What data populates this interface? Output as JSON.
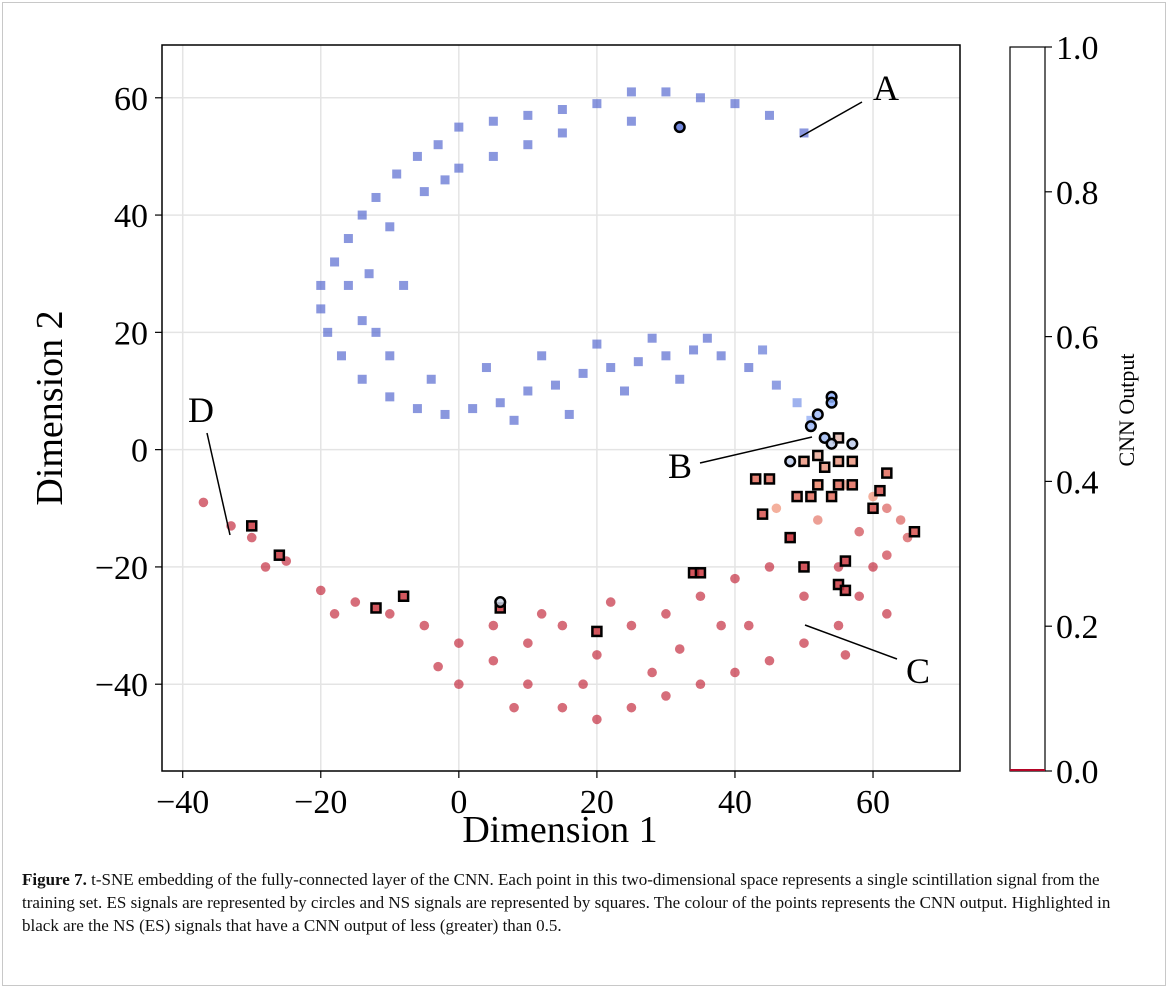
{
  "chart_data": {
    "type": "scatter",
    "xlabel": "Dimension 1",
    "ylabel": "Dimension 2",
    "colorbar_label": "CNN Output",
    "xlim": [
      -43,
      72.6
    ],
    "ylim": [
      -54.8,
      69
    ],
    "xticks": [
      {
        "value": -40,
        "label": "−40"
      },
      {
        "value": -20,
        "label": "−20"
      },
      0,
      20,
      40,
      60
    ],
    "yticks": [
      {
        "value": -40,
        "label": "−40"
      },
      {
        "value": -20,
        "label": "−20"
      },
      0,
      20,
      40,
      60
    ],
    "clim": [
      0,
      1
    ],
    "cticks": [
      {
        "value": 0,
        "label": "0.0"
      },
      0.2,
      0.4,
      0.6,
      0.8,
      {
        "value": 1,
        "label": "1.0"
      }
    ],
    "colormap": "coolwarm_r",
    "grid": true,
    "annotations": [
      "A",
      "B",
      "C",
      "D"
    ],
    "series": [
      {
        "marker": "square",
        "x": [
          50,
          45,
          40,
          35,
          30,
          25,
          20,
          15,
          10,
          5,
          0,
          -3,
          -6,
          -9,
          -12,
          -14,
          -16,
          -18,
          -20,
          -20,
          -19,
          -17,
          -14,
          -10,
          -6,
          -2,
          2,
          6,
          10,
          14,
          18,
          22,
          26,
          30,
          34,
          38,
          42,
          46,
          49,
          51,
          53,
          0,
          5,
          10,
          -5,
          -10,
          -13,
          -14,
          -10,
          -4,
          4,
          12,
          20,
          28,
          36,
          44,
          -8,
          -16,
          8,
          16,
          24,
          32,
          -2,
          15,
          25,
          -12
        ],
        "y": [
          54,
          57,
          59,
          60,
          61,
          61,
          59,
          58,
          57,
          56,
          55,
          52,
          50,
          47,
          43,
          40,
          36,
          32,
          28,
          24,
          20,
          16,
          12,
          9,
          7,
          6,
          7,
          8,
          10,
          11,
          13,
          14,
          15,
          16,
          17,
          16,
          14,
          11,
          8,
          5,
          2,
          48,
          50,
          52,
          44,
          38,
          30,
          22,
          16,
          12,
          14,
          16,
          18,
          19,
          19,
          17,
          28,
          28,
          5,
          6,
          10,
          12,
          46,
          54,
          56,
          20
        ],
        "c": [
          0.95,
          0.95,
          0.95,
          0.95,
          0.95,
          0.95,
          0.95,
          0.95,
          0.95,
          0.95,
          0.95,
          0.95,
          0.95,
          0.95,
          0.95,
          0.95,
          0.95,
          0.95,
          0.95,
          0.95,
          0.95,
          0.95,
          0.95,
          0.95,
          0.95,
          0.95,
          0.95,
          0.95,
          0.95,
          0.95,
          0.95,
          0.95,
          0.95,
          0.95,
          0.95,
          0.95,
          0.95,
          0.92,
          0.85,
          0.8,
          0.75,
          0.95,
          0.95,
          0.95,
          0.95,
          0.95,
          0.95,
          0.95,
          0.95,
          0.95,
          0.95,
          0.95,
          0.95,
          0.95,
          0.95,
          0.92,
          0.95,
          0.95,
          0.95,
          0.95,
          0.95,
          0.95,
          0.95,
          0.95,
          0.95,
          0.95
        ]
      },
      {
        "marker": "circle",
        "x": [
          -37,
          -30,
          -25,
          -20,
          -15,
          -10,
          -5,
          0,
          5,
          10,
          15,
          20,
          25,
          30,
          35,
          40,
          45,
          50,
          55,
          58,
          62,
          64,
          60,
          56,
          0,
          5,
          10,
          15,
          20,
          25,
          30,
          35,
          40,
          45,
          50,
          55,
          60,
          48,
          52,
          58,
          62,
          65,
          38,
          28,
          18,
          8,
          -3,
          -18,
          -28,
          -33,
          12,
          22,
          32,
          42,
          46,
          56,
          62
        ],
        "y": [
          -9,
          -15,
          -19,
          -24,
          -26,
          -28,
          -30,
          -33,
          -36,
          -40,
          -44,
          -46,
          -44,
          -42,
          -40,
          -38,
          -36,
          -33,
          -30,
          -25,
          -18,
          -12,
          -8,
          -6,
          -40,
          -30,
          -33,
          -30,
          -35,
          -30,
          -28,
          -25,
          -22,
          -20,
          -25,
          -20,
          -20,
          -15,
          -12,
          -14,
          -10,
          -15,
          -30,
          -38,
          -40,
          -44,
          -37,
          -28,
          -20,
          -13,
          -28,
          -26,
          -34,
          -30,
          -10,
          -35,
          -28
        ],
        "c": [
          0.05,
          0.05,
          0.05,
          0.05,
          0.05,
          0.05,
          0.05,
          0.05,
          0.05,
          0.05,
          0.05,
          0.05,
          0.05,
          0.05,
          0.05,
          0.05,
          0.05,
          0.05,
          0.05,
          0.05,
          0.08,
          0.15,
          0.25,
          0.28,
          0.05,
          0.05,
          0.05,
          0.05,
          0.05,
          0.05,
          0.05,
          0.05,
          0.05,
          0.05,
          0.05,
          0.05,
          0.05,
          0.12,
          0.2,
          0.1,
          0.15,
          0.12,
          0.05,
          0.05,
          0.05,
          0.05,
          0.05,
          0.05,
          0.05,
          0.05,
          0.05,
          0.05,
          0.05,
          0.05,
          0.25,
          0.05,
          0.05
        ]
      },
      {
        "marker": "square",
        "edgecolor": "#000000",
        "x": [
          -30,
          -26,
          -12,
          -8,
          6,
          20,
          34,
          35,
          43,
          45,
          44,
          48,
          50,
          50,
          49,
          51,
          52,
          53,
          52,
          54,
          55,
          55,
          57,
          57,
          56,
          55,
          56,
          60,
          61,
          62,
          66,
          55
        ],
        "y": [
          -13,
          -18,
          -27,
          -25,
          -27,
          -31,
          -21,
          -21,
          -5,
          -5,
          -11,
          -15,
          -20,
          -2,
          -8,
          -8,
          -1,
          -3,
          -6,
          -8,
          -2,
          -6,
          -6,
          -2,
          -19,
          -23,
          -24,
          -10,
          -7,
          -4,
          -14,
          2
        ],
        "c": [
          0.1,
          0.1,
          0.1,
          0.1,
          0.1,
          0.1,
          0.1,
          0.1,
          0.2,
          0.2,
          0.15,
          0.1,
          0.1,
          0.3,
          0.2,
          0.2,
          0.35,
          0.3,
          0.25,
          0.2,
          0.3,
          0.2,
          0.2,
          0.3,
          0.1,
          0.1,
          0.1,
          0.15,
          0.15,
          0.2,
          0.15,
          0.4
        ]
      },
      {
        "marker": "circle",
        "edgecolor": "#000000",
        "x": [
          32,
          54,
          54,
          52,
          51,
          53,
          54,
          57,
          48,
          6
        ],
        "y": [
          55,
          9,
          8,
          6,
          4,
          2,
          1,
          1,
          -2,
          -26
        ],
        "c": [
          0.9,
          0.75,
          0.75,
          0.7,
          0.7,
          0.65,
          0.6,
          0.6,
          0.6,
          0.55
        ]
      }
    ]
  },
  "caption": {
    "label": "Figure 7.",
    "text": "t-SNE embedding of the fully-connected layer of the CNN. Each point in this two-dimensional space represents a single scintillation signal from the training set. ES signals are represented by circles and NS signals are represented by squares. The colour of the points represents the CNN output. Highlighted in black are the NS (ES) signals that have a CNN output of less (greater) than 0.5."
  }
}
